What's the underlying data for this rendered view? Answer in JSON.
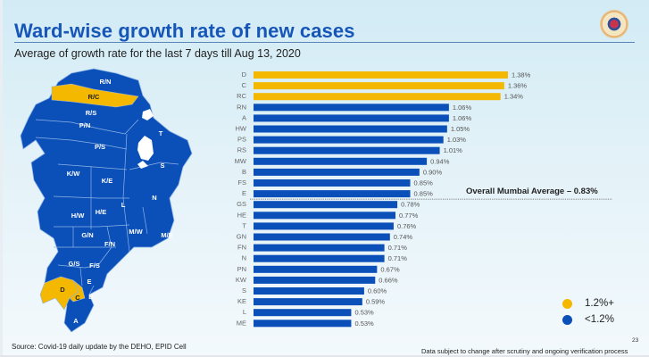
{
  "header": {
    "title": "Ward-wise growth rate of new cases",
    "subtitle": "Average of growth rate for the last 7 days till Aug 13, 2020",
    "emblem": "municipal-corporation-emblem"
  },
  "map": {
    "wards": [
      {
        "label": "R/N",
        "group": "low"
      },
      {
        "label": "R/C",
        "group": "high"
      },
      {
        "label": "R/S",
        "group": "low"
      },
      {
        "label": "P/N",
        "group": "low"
      },
      {
        "label": "P/S",
        "group": "low"
      },
      {
        "label": "T",
        "group": "low"
      },
      {
        "label": "S",
        "group": "low"
      },
      {
        "label": "K/W",
        "group": "low"
      },
      {
        "label": "K/E",
        "group": "low"
      },
      {
        "label": "N",
        "group": "low"
      },
      {
        "label": "L",
        "group": "low"
      },
      {
        "label": "H/W",
        "group": "low"
      },
      {
        "label": "H/E",
        "group": "low"
      },
      {
        "label": "G/N",
        "group": "low"
      },
      {
        "label": "F/N",
        "group": "low"
      },
      {
        "label": "M/W",
        "group": "low"
      },
      {
        "label": "M/E",
        "group": "low"
      },
      {
        "label": "G/S",
        "group": "low"
      },
      {
        "label": "F/S",
        "group": "low"
      },
      {
        "label": "E",
        "group": "low"
      },
      {
        "label": "D",
        "group": "high"
      },
      {
        "label": "C",
        "group": "high"
      },
      {
        "label": "B",
        "group": "low"
      },
      {
        "label": "A",
        "group": "low"
      }
    ]
  },
  "colors": {
    "high": "#f5b800",
    "low": "#0b4fb8",
    "title": "#1556b8"
  },
  "chart_data": {
    "type": "bar",
    "orientation": "horizontal",
    "title": "Ward-wise growth rate of new cases",
    "subtitle": "Average of growth rate for the last 7 days till Aug 13, 2020",
    "xlabel": "",
    "ylabel": "",
    "unit": "%",
    "xlim": [
      0,
      1.38
    ],
    "grid": false,
    "categories": [
      "D",
      "C",
      "RC",
      "RN",
      "A",
      "HW",
      "PS",
      "RS",
      "MW",
      "B",
      "FS",
      "E",
      "GS",
      "HE",
      "T",
      "GN",
      "FN",
      "N",
      "PN",
      "KW",
      "S",
      "KE",
      "L",
      "ME"
    ],
    "values": [
      1.38,
      1.36,
      1.34,
      1.06,
      1.06,
      1.05,
      1.03,
      1.01,
      0.94,
      0.9,
      0.85,
      0.85,
      0.78,
      0.77,
      0.76,
      0.74,
      0.71,
      0.71,
      0.67,
      0.66,
      0.6,
      0.59,
      0.53,
      0.53
    ],
    "value_labels": [
      "1.38%",
      "1.36%",
      "1.34%",
      "1.06%",
      "1.06%",
      "1.05%",
      "1.03%",
      "1.01%",
      "0.94%",
      "0.90%",
      "0.85%",
      "0.85%",
      "0.78%",
      "0.77%",
      "0.76%",
      "0.74%",
      "0.71%",
      "0.71%",
      "0.67%",
      "0.66%",
      "0.60%",
      "0.59%",
      "0.53%",
      "0.53%"
    ],
    "color_threshold": 1.2,
    "legend": {
      "position": "bottom-right",
      "entries": [
        {
          "label": "1.2%+",
          "color": "#f5b800"
        },
        {
          "label": "<1.2%",
          "color": "#0b4fb8"
        }
      ]
    },
    "reference_line": {
      "value": 0.83,
      "label": "Overall Mumbai Average – 0.83%",
      "style": "dotted",
      "between_categories": [
        "E",
        "GS"
      ]
    }
  },
  "footer": {
    "source": "Source: Covid-19 daily update by the DEHO, EPID Cell",
    "page_number": "23",
    "disclaimer": "Data subject to change after scrutiny and ongoing verification process"
  }
}
